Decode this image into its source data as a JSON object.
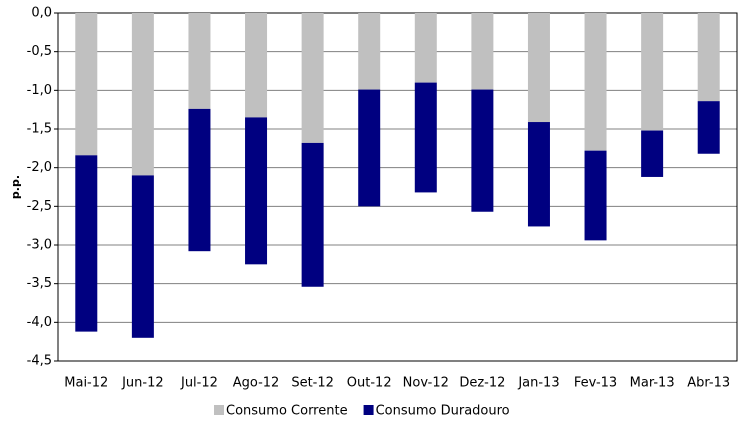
{
  "chart_data": {
    "type": "stacked-bar",
    "y_label": "p.p.",
    "categories": [
      "Mai-12",
      "Jun-12",
      "Jul-12",
      "Ago-12",
      "Set-12",
      "Out-12",
      "Nov-12",
      "Dez-12",
      "Jan-13",
      "Fev-13",
      "Mar-13",
      "Abr-13"
    ],
    "series": [
      {
        "name": "Consumo Corrente",
        "color": "#c0c0c0",
        "values": [
          -1.84,
          -2.1,
          -1.24,
          -1.35,
          -1.68,
          -0.99,
          -0.9,
          -0.99,
          -1.41,
          -1.78,
          -1.52,
          -1.14
        ]
      },
      {
        "name": "Consumo Duradouro",
        "color": "#000080",
        "values": [
          -2.28,
          -2.1,
          -1.84,
          -1.9,
          -1.86,
          -1.51,
          -1.42,
          -1.58,
          -1.35,
          -1.16,
          -0.6,
          -0.68
        ]
      }
    ],
    "ylim": [
      -4.5,
      0
    ],
    "yticks": [
      {
        "value": 0,
        "label": "0,0"
      },
      {
        "value": -0.5,
        "label": "-0,5"
      },
      {
        "value": -1,
        "label": "-1,0"
      },
      {
        "value": -1.5,
        "label": "-1,5"
      },
      {
        "value": -2,
        "label": "-2,0"
      },
      {
        "value": -2.5,
        "label": "-2,5"
      },
      {
        "value": -3,
        "label": "-3,0"
      },
      {
        "value": -3.5,
        "label": "-3,5"
      },
      {
        "value": -4,
        "label": "-4,0"
      },
      {
        "value": -4.5,
        "label": "-4,5"
      }
    ],
    "grid": true,
    "legend": "bottom"
  }
}
